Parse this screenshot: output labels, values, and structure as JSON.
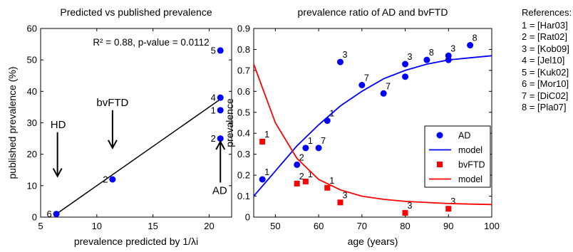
{
  "chart_data": [
    {
      "type": "scatter",
      "title": "Predicted vs published prevalence",
      "xlabel": "prevalence predicted by 1/λi",
      "ylabel": "published prevalence (%)",
      "xlim": [
        5,
        22
      ],
      "ylim": [
        0,
        60
      ],
      "xticks": [
        "5",
        "10",
        "15",
        "20"
      ],
      "yticks": [
        "0",
        "10",
        "20",
        "30",
        "40",
        "50",
        "60"
      ],
      "annotation": "R² = 0.88, p-value = 0.0112",
      "points": [
        {
          "x": 6.4,
          "y": 1,
          "label": "6"
        },
        {
          "x": 11.4,
          "y": 12,
          "label": "2"
        },
        {
          "x": 21,
          "y": 25,
          "label": "2"
        },
        {
          "x": 21,
          "y": 34,
          "label": "1"
        },
        {
          "x": 21,
          "y": 38,
          "label": "4"
        },
        {
          "x": 21,
          "y": 53,
          "label": "5"
        }
      ],
      "fit_line": {
        "x": [
          6.4,
          21
        ],
        "y": [
          1,
          37.5
        ]
      },
      "arrows": [
        {
          "label": "HD",
          "x": 6.5,
          "y_top": 27,
          "y_bottom": 13
        },
        {
          "label": "bvFTD",
          "x": 11.4,
          "y_top": 34,
          "y_bottom": 22
        },
        {
          "label": "AD",
          "x": 21,
          "y_top": 11,
          "y_bottom": 24
        }
      ]
    },
    {
      "type": "scatter",
      "title": "prevalence ratio of AD and bvFTD",
      "xlabel": "age (years)",
      "ylabel": "prevalence",
      "xlim": [
        45,
        100
      ],
      "ylim": [
        0,
        0.9
      ],
      "xticks": [
        "50",
        "60",
        "70",
        "80",
        "90",
        "100"
      ],
      "yticks": [
        "0",
        "0.1",
        "0.2",
        "0.3",
        "0.4",
        "0.5",
        "0.6",
        "0.7",
        "0.8",
        "0.9"
      ],
      "legend": {
        "position": "right",
        "entries": [
          {
            "name": "AD",
            "kind": "marker",
            "color": "#0000ff"
          },
          {
            "name": "model",
            "kind": "line",
            "color": "#0000ff"
          },
          {
            "name": "bvFTD",
            "kind": "marker",
            "color": "#ff0000"
          },
          {
            "name": "model",
            "kind": "line",
            "color": "#ff0000"
          }
        ]
      },
      "series": [
        {
          "name": "AD",
          "color": "#0000ff",
          "marker": "circle",
          "points": [
            {
              "x": 47,
              "y": 0.18,
              "label": "1"
            },
            {
              "x": 55,
              "y": 0.25,
              "label": "2"
            },
            {
              "x": 57,
              "y": 0.33,
              "label": "1"
            },
            {
              "x": 60,
              "y": 0.33,
              "label": "7"
            },
            {
              "x": 62,
              "y": 0.46,
              "label": "1"
            },
            {
              "x": 65,
              "y": 0.74,
              "label": "3"
            },
            {
              "x": 70,
              "y": 0.63,
              "label": "7"
            },
            {
              "x": 75,
              "y": 0.59,
              "label": "7"
            },
            {
              "x": 80,
              "y": 0.67,
              "label": ""
            },
            {
              "x": 80,
              "y": 0.73,
              "label": "3"
            },
            {
              "x": 85,
              "y": 0.75,
              "label": "8"
            },
            {
              "x": 90,
              "y": 0.75,
              "label": ""
            },
            {
              "x": 90,
              "y": 0.77,
              "label": "3"
            },
            {
              "x": 95,
              "y": 0.82,
              "label": "8"
            }
          ]
        },
        {
          "name": "model",
          "color": "#0000ff",
          "marker": "line",
          "x": [
            45,
            50,
            55,
            60,
            65,
            70,
            75,
            80,
            85,
            90,
            95,
            100
          ],
          "y": [
            0.1,
            0.22,
            0.34,
            0.44,
            0.53,
            0.6,
            0.66,
            0.7,
            0.73,
            0.75,
            0.76,
            0.77
          ]
        },
        {
          "name": "bvFTD",
          "color": "#ff0000",
          "marker": "square",
          "points": [
            {
              "x": 47,
              "y": 0.36,
              "label": "1"
            },
            {
              "x": 55,
              "y": 0.16,
              "label": "2"
            },
            {
              "x": 57,
              "y": 0.17,
              "label": "1"
            },
            {
              "x": 62,
              "y": 0.14,
              "label": "1"
            },
            {
              "x": 65,
              "y": 0.07,
              "label": "3"
            },
            {
              "x": 80,
              "y": 0.02,
              "label": "3"
            },
            {
              "x": 90,
              "y": 0.04,
              "label": "3"
            }
          ]
        },
        {
          "name": "model",
          "color": "#ff0000",
          "marker": "line",
          "x": [
            45,
            50,
            55,
            60,
            65,
            70,
            75,
            80,
            85,
            90,
            95,
            100
          ],
          "y": [
            0.73,
            0.45,
            0.28,
            0.18,
            0.13,
            0.1,
            0.085,
            0.075,
            0.07,
            0.065,
            0.062,
            0.06
          ]
        }
      ]
    }
  ],
  "references": {
    "title": "References:",
    "items": [
      "1 = [Har03]",
      "2 = [Rat02]",
      "3 = [Kob09]",
      "4 = [Jel10]",
      "5 = [Kuk02]",
      "6 = [Mor10]",
      "7 = [DiC02]",
      "8 = [Pla07]"
    ]
  }
}
